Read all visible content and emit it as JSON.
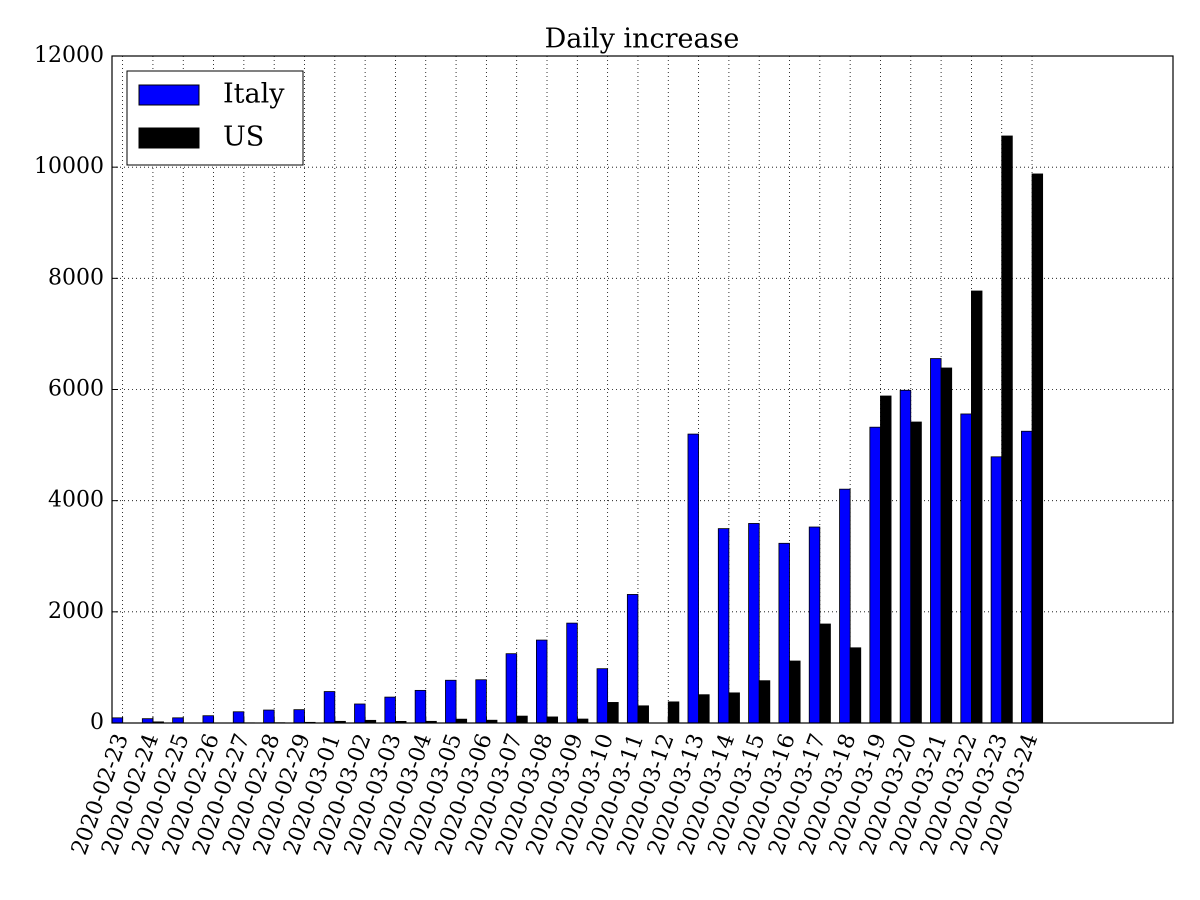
{
  "chart_data": {
    "type": "bar",
    "title": "Daily increase",
    "categories": [
      "2020-02-23",
      "2020-02-24",
      "2020-02-25",
      "2020-02-26",
      "2020-02-27",
      "2020-02-28",
      "2020-02-29",
      "2020-03-01",
      "2020-03-02",
      "2020-03-03",
      "2020-03-04",
      "2020-03-05",
      "2020-03-06",
      "2020-03-07",
      "2020-03-08",
      "2020-03-09",
      "2020-03-10",
      "2020-03-11",
      "2020-03-12",
      "2020-03-13",
      "2020-03-14",
      "2020-03-15",
      "2020-03-16",
      "2020-03-17",
      "2020-03-18",
      "2020-03-19",
      "2020-03-20",
      "2020-03-21",
      "2020-03-22",
      "2020-03-23",
      "2020-03-24"
    ],
    "series": [
      {
        "name": "Italy",
        "color": "#0000ff",
        "values": [
          93,
          78,
          93,
          131,
          202,
          233,
          240,
          566,
          342,
          466,
          587,
          769,
          778,
          1247,
          1492,
          1797,
          977,
          2313,
          0,
          5198,
          3497,
          3590,
          3233,
          3526,
          4207,
          5322,
          5986,
          6557,
          5560,
          4789,
          5249
        ]
      },
      {
        "name": "US",
        "color": "#000000",
        "values": [
          0,
          20,
          0,
          0,
          3,
          5,
          12,
          30,
          48,
          29,
          30,
          69,
          50,
          124,
          109,
          71,
          370,
          309,
          380,
          509,
          542,
          761,
          1115,
          1781,
          1353,
          5883,
          5415,
          6387,
          7772,
          10561,
          9878
        ]
      }
    ],
    "ylim": [
      0,
      12000
    ],
    "yticks": [
      0,
      2000,
      4000,
      6000,
      8000,
      10000,
      12000
    ],
    "grid": true,
    "legend": "upper left"
  }
}
